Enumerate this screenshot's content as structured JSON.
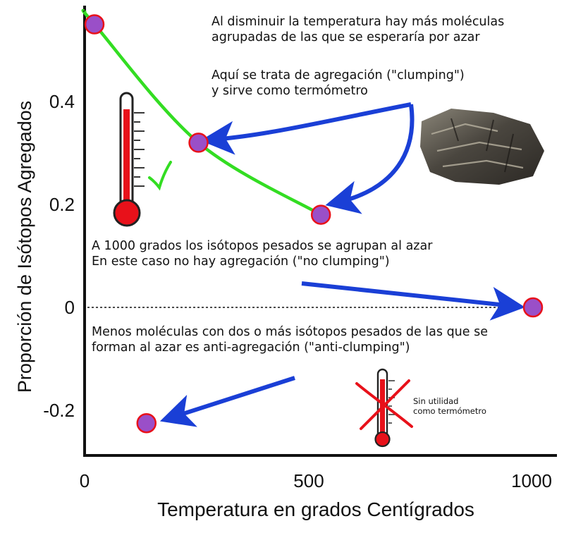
{
  "chart_data": {
    "type": "scatter",
    "title": "",
    "xlabel": "Temperatura en grados Centígrados",
    "ylabel": "Proporción de Isótopos Agregados",
    "x_ticks": [
      {
        "value": 0,
        "label": "0",
        "color": "#1a3fd6"
      },
      {
        "value": 500,
        "label": "500",
        "color": "#111111"
      },
      {
        "value": 1000,
        "label": "1000",
        "color": "#e8111a"
      }
    ],
    "y_ticks": [
      {
        "value": 0.4,
        "label": "0.4"
      },
      {
        "value": 0.2,
        "label": "0.2"
      },
      {
        "value": 0,
        "label": "0"
      },
      {
        "value": -0.2,
        "label": "-0.2"
      }
    ],
    "xlim": [
      0,
      1010
    ],
    "ylim": [
      -0.32,
      0.57
    ],
    "grid": false,
    "zero_line": "dashed",
    "series": [
      {
        "points": [
          {
            "x": 22,
            "y": 0.55
          },
          {
            "x": 254,
            "y": 0.32
          },
          {
            "x": 527,
            "y": 0.18
          },
          {
            "x": 1000,
            "y": 0.0
          },
          {
            "x": 138,
            "y": -0.225
          }
        ]
      }
    ],
    "fit_curve": {
      "x": [
        0,
        22,
        254,
        527
      ],
      "y": [
        0.575,
        0.55,
        0.32,
        0.18
      ],
      "color": "#33dd22"
    },
    "colors": {
      "point_fill": "#9a4fc8",
      "point_stroke": "#e8111a",
      "arrow": "#1a3fd6",
      "curve": "#33dd22"
    }
  },
  "annotations": {
    "cold_lines": [
      "Al disminuir la temperatura hay más moléculas",
      "agrupadas de las que se esperaría por azar"
    ],
    "clumping_lines": [
      "Aquí se trata de agregación (\"clumping\")",
      "y sirve como termómetro"
    ],
    "random_lines": [
      "A 1000 grados los isótopos pesados se agrupan al azar",
      "En este caso no hay agregación (\"no clumping\")"
    ],
    "anti_lines": [
      "Menos moléculas con dos o más isótopos pesados de las que se",
      "forman al azar es anti-agregación (\"anti-clumping\")"
    ],
    "useless_lines": [
      "Sin utilidad",
      "como termómetro"
    ]
  },
  "icons": {
    "good_thermometer": "thermometer-icon",
    "check": "checkmark-icon",
    "bad_thermometer": "thermometer-icon",
    "cross": "red-x-icon",
    "sample": "rock-sample-image"
  }
}
